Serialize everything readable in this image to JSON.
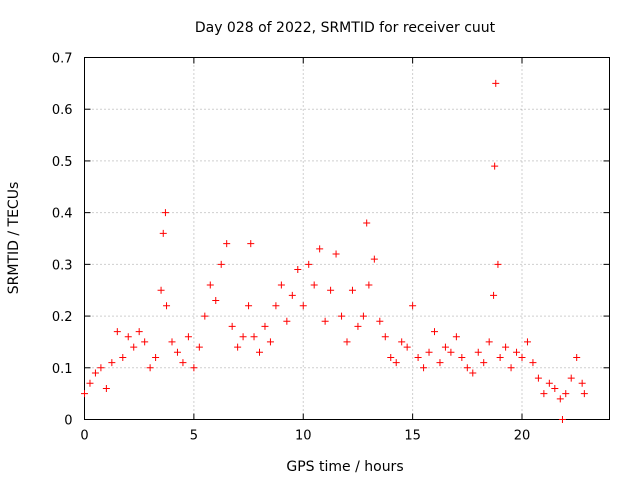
{
  "chart_data": {
    "type": "scatter",
    "title": "Day 028 of 2022, SRMTID for receiver cuut",
    "xlabel": "GPS time / hours",
    "ylabel": "SRMTID / TECUs",
    "xlim": [
      0,
      24
    ],
    "ylim": [
      0,
      0.7
    ],
    "xticks": [
      0,
      5,
      10,
      15,
      20
    ],
    "xtick_labels": [
      "0",
      "5",
      "10",
      "15",
      "20"
    ],
    "yticks": [
      0,
      0.1,
      0.2,
      0.3,
      0.4,
      0.5,
      0.6,
      0.7
    ],
    "ytick_labels": [
      "0",
      "0.1",
      "0.2",
      "0.3",
      "0.4",
      "0.5",
      "0.6",
      "0.7"
    ],
    "grid": true,
    "marker": "+",
    "color": "#ff0000",
    "series": [
      {
        "name": "SRMTID",
        "x": [
          0.0,
          0.25,
          0.5,
          0.75,
          1.0,
          1.25,
          1.5,
          1.75,
          2.0,
          2.25,
          2.5,
          2.75,
          3.0,
          3.25,
          3.5,
          3.6,
          3.7,
          3.75,
          4.0,
          4.25,
          4.5,
          4.75,
          5.0,
          5.25,
          5.5,
          5.75,
          6.0,
          6.25,
          6.5,
          6.75,
          7.0,
          7.25,
          7.5,
          7.6,
          7.75,
          8.0,
          8.25,
          8.5,
          8.75,
          9.0,
          9.25,
          9.5,
          9.75,
          10.0,
          10.25,
          10.5,
          10.75,
          11.0,
          11.25,
          11.5,
          11.75,
          12.0,
          12.25,
          12.5,
          12.75,
          12.9,
          13.0,
          13.25,
          13.5,
          13.75,
          14.0,
          14.25,
          14.5,
          14.75,
          15.0,
          15.25,
          15.5,
          15.75,
          16.0,
          16.25,
          16.5,
          16.75,
          17.0,
          17.25,
          17.5,
          17.75,
          18.0,
          18.25,
          18.5,
          18.7,
          18.75,
          18.8,
          18.9,
          19.0,
          19.25,
          19.5,
          19.75,
          20.0,
          20.25,
          20.5,
          20.75,
          21.0,
          21.25,
          21.5,
          21.75,
          21.85,
          22.0,
          22.25,
          22.5,
          22.75,
          22.85
        ],
        "y": [
          0.05,
          0.07,
          0.09,
          0.1,
          0.06,
          0.11,
          0.17,
          0.12,
          0.16,
          0.14,
          0.17,
          0.15,
          0.1,
          0.12,
          0.25,
          0.36,
          0.4,
          0.22,
          0.15,
          0.13,
          0.11,
          0.16,
          0.1,
          0.14,
          0.2,
          0.26,
          0.23,
          0.3,
          0.34,
          0.18,
          0.14,
          0.16,
          0.22,
          0.34,
          0.16,
          0.13,
          0.18,
          0.15,
          0.22,
          0.26,
          0.19,
          0.24,
          0.29,
          0.22,
          0.3,
          0.26,
          0.33,
          0.19,
          0.25,
          0.32,
          0.2,
          0.15,
          0.25,
          0.18,
          0.2,
          0.38,
          0.26,
          0.31,
          0.19,
          0.16,
          0.12,
          0.11,
          0.15,
          0.14,
          0.22,
          0.12,
          0.1,
          0.13,
          0.17,
          0.11,
          0.14,
          0.13,
          0.16,
          0.12,
          0.1,
          0.09,
          0.13,
          0.11,
          0.15,
          0.24,
          0.49,
          0.65,
          0.3,
          0.12,
          0.14,
          0.1,
          0.13,
          0.12,
          0.15,
          0.11,
          0.08,
          0.05,
          0.07,
          0.06,
          0.04,
          0.0,
          0.05,
          0.08,
          0.12,
          0.07,
          0.05
        ]
      }
    ]
  }
}
